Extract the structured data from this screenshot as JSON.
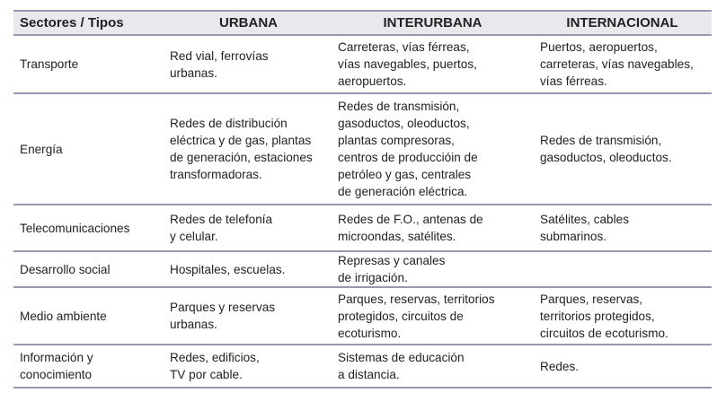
{
  "table": {
    "headers": [
      "Sectores / Tipos",
      "URBANA",
      "INTERURBANA",
      "INTERNACIONAL"
    ],
    "rows": [
      {
        "cells": [
          [
            "Transporte"
          ],
          [
            "Red vial, ferrovías",
            "urbanas."
          ],
          [
            "Carreteras, vías férreas,",
            "vías navegables, puertos,",
            "aeropuertos."
          ],
          [
            "Puertos, aeropuertos,",
            "carreteras, vías navegables,",
            "vías férreas."
          ]
        ]
      },
      {
        "cells": [
          [
            "Energía"
          ],
          [
            "Redes de distribución",
            "eléctrica y de gas, plantas",
            "de generación, estaciones",
            "transformadoras."
          ],
          [
            "Redes de transmisión,",
            "gasoductos, oleoductos,",
            "plantas compresoras,",
            "centros de produccióin de",
            "petróleo y gas, centrales",
            "de generación eléctrica."
          ],
          [
            "Redes de transmisión,",
            "gasoductos, oleoductos."
          ]
        ]
      },
      {
        "cells": [
          [
            "Telecomunicaciones"
          ],
          [
            "Redes de telefonía",
            "y celular."
          ],
          [
            "Redes de F.O., antenas de",
            "microondas, satélites."
          ],
          [
            "Satélites, cables",
            "submarinos."
          ]
        ]
      },
      {
        "cells": [
          [
            "Desarrollo social"
          ],
          [
            "Hospitales, escuelas."
          ],
          [
            "Represas y canales",
            "de irrigación."
          ],
          []
        ]
      },
      {
        "cells": [
          [
            "Medio ambiente"
          ],
          [
            "Parques y reservas",
            "urbanas."
          ],
          [
            "Parques, reservas, territorios",
            "protegidos, circuitos de",
            "ecoturismo."
          ],
          [
            "Parques, reservas,",
            "territorios protegidos,",
            "circuitos de ecoturismo."
          ]
        ]
      },
      {
        "cells": [
          [
            "Información y",
            "conocimiento"
          ],
          [
            "Redes, edificios,",
            "TV por cable."
          ],
          [
            "Sistemas de educación",
            "a distancia."
          ],
          [
            "Redes."
          ]
        ]
      }
    ]
  }
}
